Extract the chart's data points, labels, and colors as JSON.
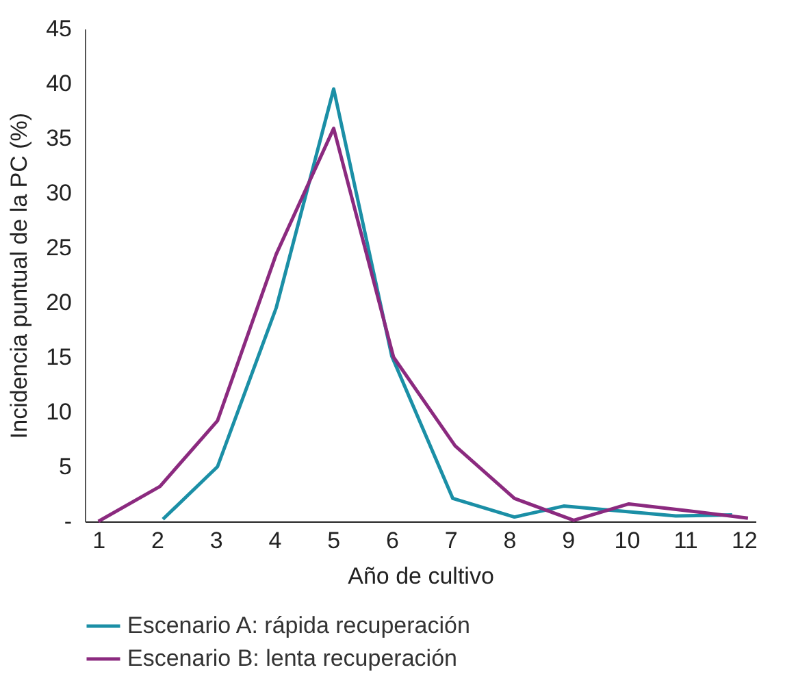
{
  "chart_data": {
    "type": "line",
    "xlabel": "Año de cultivo",
    "ylabel": "Incidencia puntual de la PC (%)",
    "xlim": [
      0.77,
      12.2
    ],
    "xticks": [
      1,
      2,
      3,
      4,
      5,
      6,
      7,
      8,
      9,
      10,
      11,
      12
    ],
    "ylim": [
      0,
      45
    ],
    "yticks": [
      {
        "value": 0,
        "label": "-"
      },
      5,
      10,
      15,
      20,
      25,
      30,
      35,
      40,
      45
    ],
    "grid": false,
    "legend": "bottom",
    "line_style": "solid",
    "marker": "none",
    "series": [
      {
        "name": "Escenario A: rápida recuperación",
        "color": "#1b8fa6",
        "x": [
          2.1,
          3.03,
          4.03,
          5.01,
          6.0,
          7.04,
          8.09,
          8.93,
          10.84,
          11.8
        ],
        "values": [
          0.2,
          5.0,
          19.5,
          39.5,
          15.1,
          2.1,
          0.4,
          1.4,
          0.5,
          0.6
        ]
      },
      {
        "name": "Escenario B: lenta recuperación",
        "color": "#8b2a7f",
        "x": [
          1.0,
          2.05,
          3.03,
          4.03,
          5.01,
          6.03,
          7.08,
          8.09,
          9.1,
          10.04,
          11.0,
          12.07
        ],
        "values": [
          0,
          3.2,
          9.2,
          24.4,
          35.9,
          15.0,
          6.9,
          2.1,
          0.1,
          1.6,
          1.0,
          0.3
        ]
      }
    ]
  }
}
